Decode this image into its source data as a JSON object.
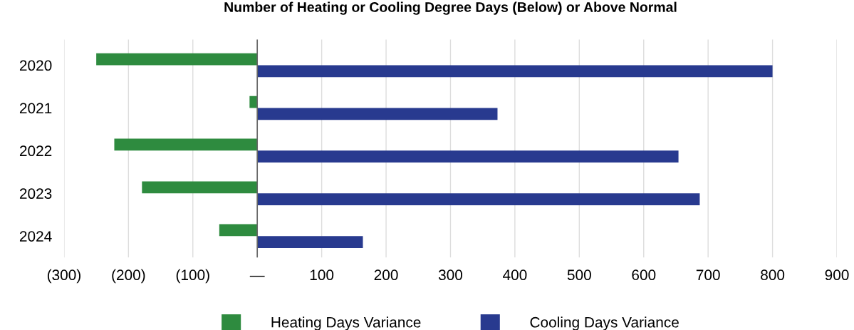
{
  "chart_data": {
    "type": "bar",
    "orientation": "horizontal",
    "title": "Number of Heating or Cooling Degree Days (Below) or Above Normal",
    "categories": [
      "2020",
      "2021",
      "2022",
      "2023",
      "2024"
    ],
    "series": [
      {
        "name": "Heating Days Variance",
        "color": "#2e8b3f",
        "values": [
          -250,
          -12,
          -222,
          -179,
          -59
        ]
      },
      {
        "name": "Cooling Days Variance",
        "color": "#283a8f",
        "values": [
          800,
          373,
          654,
          687,
          164
        ]
      }
    ],
    "xlim": [
      -300,
      900
    ],
    "xticks": [
      {
        "value": -300,
        "label": "(300)"
      },
      {
        "value": -200,
        "label": "(200)"
      },
      {
        "value": -100,
        "label": "(100)"
      },
      {
        "value": 0,
        "label": "—"
      },
      100,
      200,
      300,
      400,
      500,
      600,
      700,
      800,
      900
    ],
    "ref_lines": [
      {
        "axis": "x",
        "value": 0,
        "color": "#666666"
      }
    ],
    "grid": "x",
    "legend": "bottom"
  }
}
